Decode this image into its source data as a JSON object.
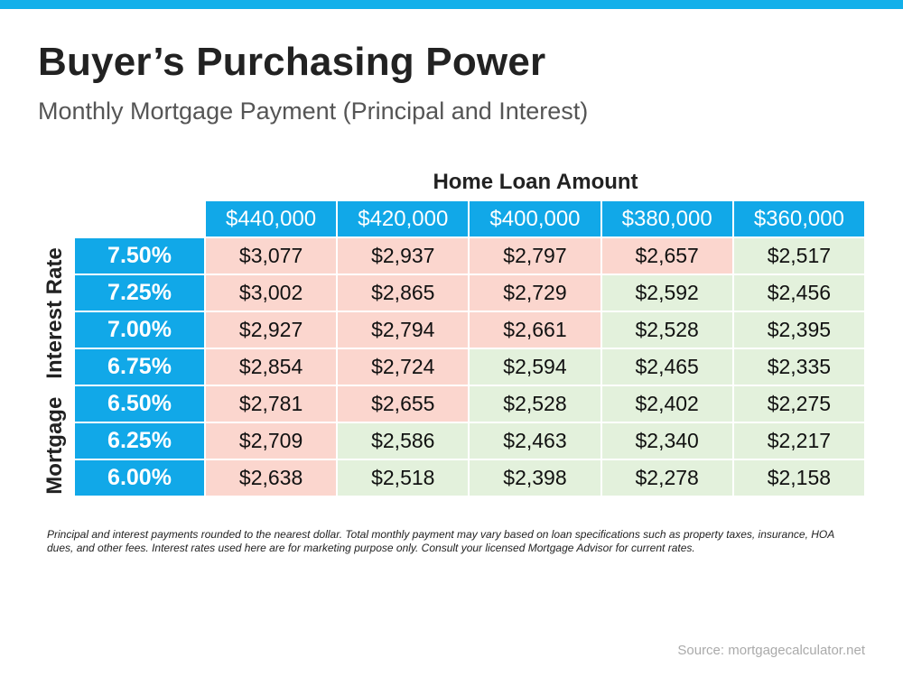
{
  "title": "Buyer’s Purchasing Power",
  "subtitle": "Monthly Mortgage Payment (Principal and Interest)",
  "chart_data": {
    "type": "table",
    "column_header_title": "Home Loan Amount",
    "row_header_title": "Mortgage   Interest Rate",
    "columns": [
      "$440,000",
      "$420,000",
      "$400,000",
      "$380,000",
      "$360,000"
    ],
    "rows": [
      {
        "rate": "7.50%",
        "values": [
          "$3,077",
          "$2,937",
          "$2,797",
          "$2,657",
          "$2,517"
        ],
        "highlight": [
          true,
          true,
          true,
          true,
          false
        ]
      },
      {
        "rate": "7.25%",
        "values": [
          "$3,002",
          "$2,865",
          "$2,729",
          "$2,592",
          "$2,456"
        ],
        "highlight": [
          true,
          true,
          true,
          false,
          false
        ]
      },
      {
        "rate": "7.00%",
        "values": [
          "$2,927",
          "$2,794",
          "$2,661",
          "$2,528",
          "$2,395"
        ],
        "highlight": [
          true,
          true,
          true,
          false,
          false
        ]
      },
      {
        "rate": "6.75%",
        "values": [
          "$2,854",
          "$2,724",
          "$2,594",
          "$2,465",
          "$2,335"
        ],
        "highlight": [
          true,
          true,
          false,
          false,
          false
        ]
      },
      {
        "rate": "6.50%",
        "values": [
          "$2,781",
          "$2,655",
          "$2,528",
          "$2,402",
          "$2,275"
        ],
        "highlight": [
          true,
          true,
          false,
          false,
          false
        ]
      },
      {
        "rate": "6.25%",
        "values": [
          "$2,709",
          "$2,586",
          "$2,463",
          "$2,340",
          "$2,217"
        ],
        "highlight": [
          true,
          false,
          false,
          false,
          false
        ]
      },
      {
        "rate": "6.00%",
        "values": [
          "$2,638",
          "$2,518",
          "$2,398",
          "$2,278",
          "$2,158"
        ],
        "highlight": [
          true,
          false,
          false,
          false,
          false
        ]
      }
    ]
  },
  "colors": {
    "accent": "#12b0ea",
    "header_fill": "#11a8e8",
    "high_payment_fill": "#fbd6ce",
    "low_payment_fill": "#e3f1dc"
  },
  "footnote": "Principal and interest payments rounded to the nearest dollar. Total monthly payment may vary based on loan specifications such as property taxes, insurance, HOA dues, and other fees. Interest rates used here are for marketing purpose only. Consult your licensed Mortgage Advisor for current rates.",
  "source": "Source: mortgagecalculator.net"
}
